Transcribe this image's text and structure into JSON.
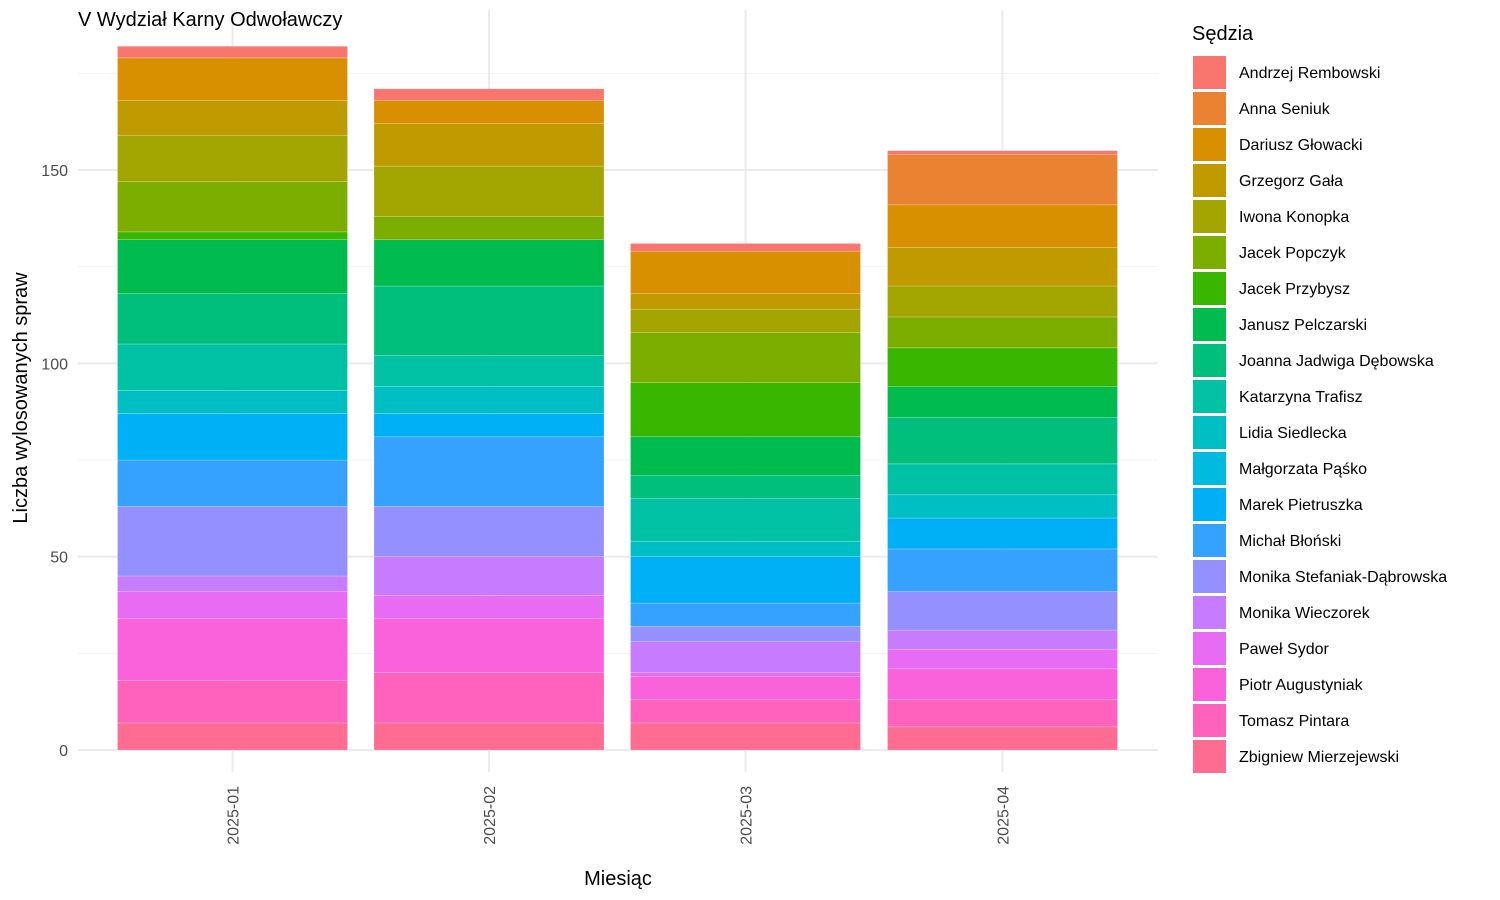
{
  "chart_data": {
    "type": "bar",
    "stacked": true,
    "title": "V Wydział Karny Odwoławczy",
    "xlabel": "Miesiąc",
    "ylabel": "Liczba wylosowanych spraw",
    "ylim": [
      0,
      185
    ],
    "yticks": [
      0,
      50,
      100,
      150
    ],
    "grid": true,
    "legend_title": "Sędzia",
    "legend_position": "right",
    "categories": [
      "2025-01",
      "2025-02",
      "2025-03",
      "2025-04"
    ],
    "series": [
      {
        "name": "Andrzej Rembowski",
        "color": "#F8766D",
        "values": [
          3,
          3,
          2,
          1
        ]
      },
      {
        "name": "Anna Seniuk",
        "color": "#EA8331",
        "values": [
          0,
          0,
          0,
          13
        ]
      },
      {
        "name": "Dariusz Głowacki",
        "color": "#D89000",
        "values": [
          11,
          6,
          11,
          11
        ]
      },
      {
        "name": "Grzegorz Gała",
        "color": "#C09B00",
        "values": [
          9,
          11,
          4,
          10
        ]
      },
      {
        "name": "Iwona Konopka",
        "color": "#A3A500",
        "values": [
          12,
          13,
          6,
          8
        ]
      },
      {
        "name": "Jacek Popczyk",
        "color": "#7CAE00",
        "values": [
          13,
          6,
          13,
          8
        ]
      },
      {
        "name": "Jacek Przybysz",
        "color": "#39B600",
        "values": [
          2,
          0,
          14,
          10
        ]
      },
      {
        "name": "Janusz Pelczarski",
        "color": "#00BB4E",
        "values": [
          14,
          12,
          10,
          8
        ]
      },
      {
        "name": "Joanna Jadwiga Dębowska",
        "color": "#00BF7D",
        "values": [
          13,
          18,
          6,
          12
        ]
      },
      {
        "name": "Katarzyna Trafisz",
        "color": "#00C1A3",
        "values": [
          12,
          8,
          11,
          8
        ]
      },
      {
        "name": "Lidia Siedlecka",
        "color": "#00BFC4",
        "values": [
          6,
          7,
          4,
          6
        ]
      },
      {
        "name": "Małgorzata Pąśko",
        "color": "#00BAE0",
        "values": [
          0,
          0,
          0,
          0
        ]
      },
      {
        "name": "Marek Pietruszka",
        "color": "#00B0F6",
        "values": [
          12,
          6,
          12,
          8
        ]
      },
      {
        "name": "Michał Błoński",
        "color": "#35A2FF",
        "values": [
          12,
          18,
          6,
          11
        ]
      },
      {
        "name": "Monika Stefaniak-Dąbrowska",
        "color": "#9590FF",
        "values": [
          18,
          13,
          4,
          10
        ]
      },
      {
        "name": "Monika Wieczorek",
        "color": "#C77CFF",
        "values": [
          4,
          10,
          8,
          5
        ]
      },
      {
        "name": "Paweł Sydor",
        "color": "#E76BF3",
        "values": [
          7,
          6,
          1,
          5
        ]
      },
      {
        "name": "Piotr Augustyniak",
        "color": "#FA62DB",
        "values": [
          16,
          14,
          6,
          8
        ]
      },
      {
        "name": "Tomasz Pintara",
        "color": "#FF62BC",
        "values": [
          11,
          13,
          6,
          7
        ]
      },
      {
        "name": "Zbigniew Mierzejewski",
        "color": "#FF6C91",
        "values": [
          7,
          7,
          7,
          6
        ]
      }
    ]
  }
}
